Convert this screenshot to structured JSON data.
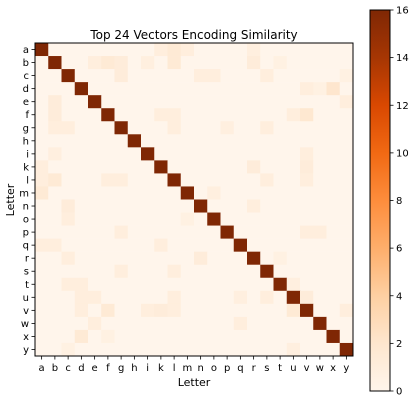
{
  "chart_data": {
    "type": "heatmap",
    "title": "Top 24 Vectors Encoding Similarity",
    "xlabel": "Letter",
    "ylabel": "Letter",
    "x_labels": [
      "a",
      "b",
      "c",
      "d",
      "e",
      "f",
      "g",
      "h",
      "i",
      "k",
      "l",
      "m",
      "n",
      "o",
      "p",
      "q",
      "r",
      "s",
      "t",
      "u",
      "v",
      "w",
      "x",
      "y"
    ],
    "y_labels": [
      "a",
      "b",
      "c",
      "d",
      "e",
      "f",
      "g",
      "h",
      "i",
      "k",
      "l",
      "m",
      "n",
      "o",
      "p",
      "q",
      "r",
      "s",
      "t",
      "u",
      "v",
      "w",
      "x",
      "y"
    ],
    "diagonal_value": 16,
    "off_diagonal": [
      {
        "row": "a",
        "col": "k",
        "value": 1
      },
      {
        "row": "a",
        "col": "l",
        "value": 1.5
      },
      {
        "row": "a",
        "col": "m",
        "value": 1
      },
      {
        "row": "a",
        "col": "r",
        "value": 0.8
      },
      {
        "row": "b",
        "col": "e",
        "value": 1
      },
      {
        "row": "b",
        "col": "f",
        "value": 1.5
      },
      {
        "row": "b",
        "col": "g",
        "value": 1.2
      },
      {
        "row": "b",
        "col": "i",
        "value": 0.8
      },
      {
        "row": "b",
        "col": "l",
        "value": 1.5
      },
      {
        "row": "b",
        "col": "r",
        "value": 1.2
      },
      {
        "row": "b",
        "col": "t",
        "value": 0.6
      },
      {
        "row": "c",
        "col": "g",
        "value": 1.2
      },
      {
        "row": "c",
        "col": "n",
        "value": 1
      },
      {
        "row": "c",
        "col": "o",
        "value": 1
      },
      {
        "row": "c",
        "col": "s",
        "value": 1
      },
      {
        "row": "c",
        "col": "y",
        "value": 0.6
      },
      {
        "row": "d",
        "col": "v",
        "value": 1
      },
      {
        "row": "d",
        "col": "w",
        "value": 0.6
      },
      {
        "row": "d",
        "col": "x",
        "value": 2
      },
      {
        "row": "e",
        "col": "b",
        "value": 1.2
      },
      {
        "row": "e",
        "col": "y",
        "value": 1
      },
      {
        "row": "f",
        "col": "b",
        "value": 1.2
      },
      {
        "row": "f",
        "col": "k",
        "value": 1
      },
      {
        "row": "f",
        "col": "l",
        "value": 1
      },
      {
        "row": "f",
        "col": "u",
        "value": 1
      },
      {
        "row": "f",
        "col": "v",
        "value": 1.8
      },
      {
        "row": "g",
        "col": "b",
        "value": 1
      },
      {
        "row": "g",
        "col": "c",
        "value": 1
      },
      {
        "row": "g",
        "col": "l",
        "value": 1
      },
      {
        "row": "g",
        "col": "p",
        "value": 0.8
      },
      {
        "row": "g",
        "col": "s",
        "value": 1
      },
      {
        "row": "i",
        "col": "b",
        "value": 0.8
      },
      {
        "row": "i",
        "col": "v",
        "value": 1
      },
      {
        "row": "k",
        "col": "a",
        "value": 1
      },
      {
        "row": "k",
        "col": "r",
        "value": 1.2
      },
      {
        "row": "k",
        "col": "v",
        "value": 1.2
      },
      {
        "row": "l",
        "col": "a",
        "value": 1
      },
      {
        "row": "l",
        "col": "b",
        "value": 1.5
      },
      {
        "row": "l",
        "col": "f",
        "value": 1
      },
      {
        "row": "l",
        "col": "g",
        "value": 1
      },
      {
        "row": "l",
        "col": "s",
        "value": 1
      },
      {
        "row": "l",
        "col": "v",
        "value": 1
      },
      {
        "row": "m",
        "col": "a",
        "value": 1.5
      },
      {
        "row": "m",
        "col": "o",
        "value": 0.8
      },
      {
        "row": "n",
        "col": "c",
        "value": 1.2
      },
      {
        "row": "n",
        "col": "r",
        "value": 1
      },
      {
        "row": "o",
        "col": "c",
        "value": 1
      },
      {
        "row": "o",
        "col": "m",
        "value": 0.6
      },
      {
        "row": "p",
        "col": "g",
        "value": 1
      },
      {
        "row": "p",
        "col": "v",
        "value": 1
      },
      {
        "row": "p",
        "col": "w",
        "value": 1
      },
      {
        "row": "q",
        "col": "a",
        "value": 1
      },
      {
        "row": "q",
        "col": "b",
        "value": 1
      },
      {
        "row": "q",
        "col": "k",
        "value": 1
      },
      {
        "row": "r",
        "col": "c",
        "value": 1
      },
      {
        "row": "r",
        "col": "n",
        "value": 1.2
      },
      {
        "row": "r",
        "col": "t",
        "value": 0.6
      },
      {
        "row": "s",
        "col": "g",
        "value": 1
      },
      {
        "row": "s",
        "col": "l",
        "value": 1
      },
      {
        "row": "t",
        "col": "c",
        "value": 1
      },
      {
        "row": "t",
        "col": "d",
        "value": 1
      },
      {
        "row": "t",
        "col": "u",
        "value": 0.8
      },
      {
        "row": "u",
        "col": "d",
        "value": 1
      },
      {
        "row": "u",
        "col": "e",
        "value": 1
      },
      {
        "row": "u",
        "col": "l",
        "value": 1
      },
      {
        "row": "u",
        "col": "q",
        "value": 0.8
      },
      {
        "row": "u",
        "col": "s",
        "value": 1
      },
      {
        "row": "u",
        "col": "v",
        "value": 1.2
      },
      {
        "row": "v",
        "col": "d",
        "value": 1
      },
      {
        "row": "v",
        "col": "f",
        "value": 1.5
      },
      {
        "row": "v",
        "col": "i",
        "value": 1
      },
      {
        "row": "v",
        "col": "k",
        "value": 1.2
      },
      {
        "row": "v",
        "col": "l",
        "value": 1
      },
      {
        "row": "v",
        "col": "u",
        "value": 1.5
      },
      {
        "row": "v",
        "col": "y",
        "value": 1
      },
      {
        "row": "w",
        "col": "e",
        "value": 1
      },
      {
        "row": "w",
        "col": "q",
        "value": 1
      },
      {
        "row": "x",
        "col": "d",
        "value": 1.5
      },
      {
        "row": "x",
        "col": "f",
        "value": 0.6
      },
      {
        "row": "y",
        "col": "c",
        "value": 0.6
      },
      {
        "row": "y",
        "col": "u",
        "value": 0.8
      }
    ],
    "colormap": "Oranges",
    "colormap_stops": [
      "#fff5eb",
      "#fee6ce",
      "#fdd0a2",
      "#fdae6b",
      "#fd8d3c",
      "#f16913",
      "#d94801",
      "#a63603",
      "#7f2704"
    ],
    "colorbar": {
      "min": 0,
      "max": 16,
      "ticks": [
        "0",
        "2",
        "4",
        "6",
        "8",
        "10",
        "12",
        "14",
        "16"
      ]
    },
    "grid": false,
    "legend": "colorbar-right"
  }
}
